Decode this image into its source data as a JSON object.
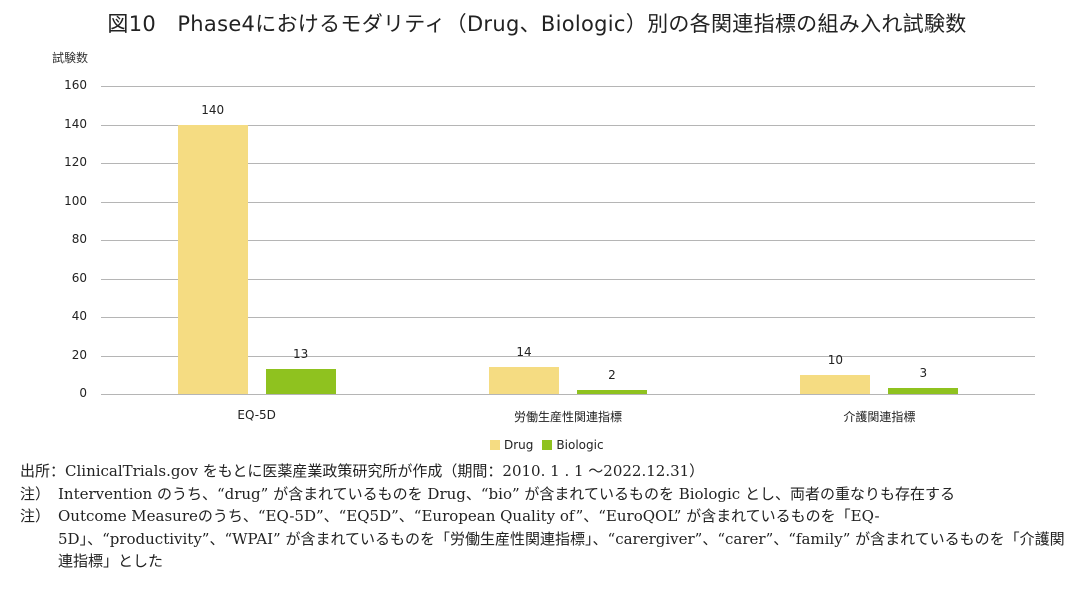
{
  "title": "図10　Phase4におけるモダリティ（Drug、Biologic）別の各関連指標の組み入れ試験数",
  "chart_data": {
    "type": "bar",
    "title": "図10　Phase4におけるモダリティ（Drug、Biologic）別の各関連指標の組み入れ試験数",
    "xlabel": "",
    "ylabel": "試験数",
    "ylim": [
      0,
      160
    ],
    "yticks": [
      0,
      20,
      40,
      60,
      80,
      100,
      120,
      140,
      160
    ],
    "grid": true,
    "legend_position": "bottom",
    "categories": [
      "EQ-5D",
      "労働生産性関連指標",
      "介護関連指標"
    ],
    "series": [
      {
        "name": "Drug",
        "color": "#f5dc82",
        "values": [
          140,
          14,
          10
        ]
      },
      {
        "name": "Biologic",
        "color": "#8fc21f",
        "values": [
          13,
          2,
          3
        ]
      }
    ]
  },
  "legend": [
    {
      "label": "Drug",
      "color": "#f5dc82"
    },
    {
      "label": "Biologic",
      "color": "#8fc21f"
    }
  ],
  "notes": {
    "source": "出所：ClinicalTrials.gov をもとに医薬産業政策研究所が作成（期間：2010. 1 . 1 ～2022.12.31）",
    "note1_prefix": "注）",
    "note1": "Intervention のうち、“drug” が含まれているものを Drug、“bio” が含まれているものを Biologic とし、両者の重なりも存在する",
    "note2_prefix": "注）",
    "note2": "Outcome Measureのうち、“EQ-5D”、“EQ5D”、“European Quality of”、“EuroQOL” が含まれているものを「EQ-5D」、“productivity”、“WPAI” が含まれているものを「労働生産性関連指標」、“carergiver”、“carer”、“family” が含まれているものを「介護関連指標」とした"
  }
}
